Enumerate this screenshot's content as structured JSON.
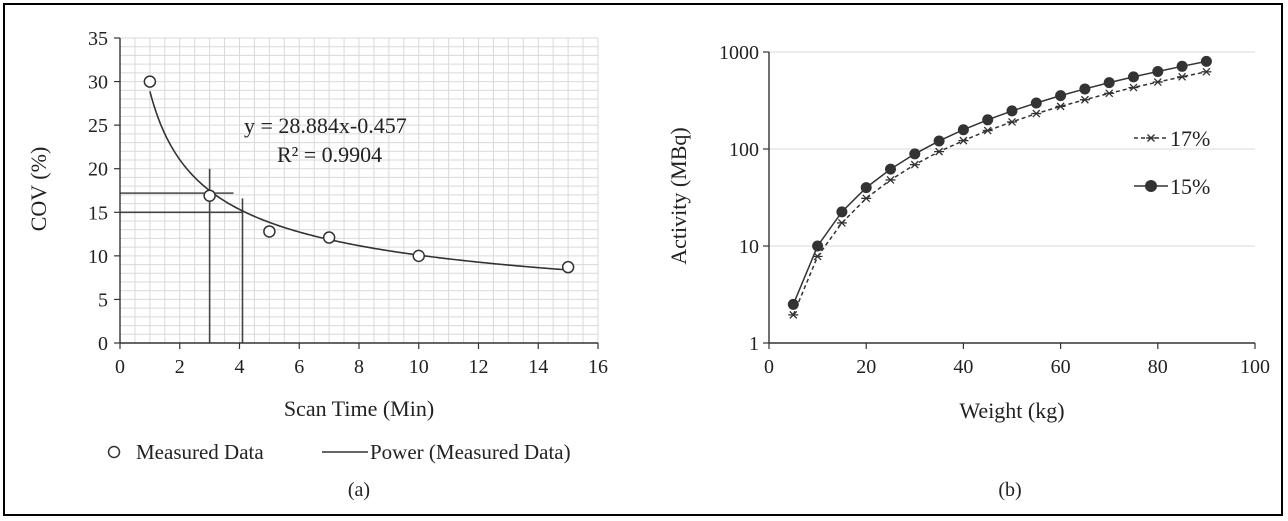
{
  "chart_data": [
    {
      "type": "scatter",
      "panel_label": "(a)",
      "xlabel": "Scan Time (Min)",
      "ylabel": "COV (%)",
      "xlim": [
        0,
        16
      ],
      "ylim": [
        0,
        35
      ],
      "xticks": [
        0,
        2,
        4,
        6,
        8,
        10,
        12,
        14,
        16
      ],
      "yticks": [
        0,
        5,
        10,
        15,
        20,
        25,
        30,
        35
      ],
      "grid": true,
      "series": [
        {
          "name": "Measured Data",
          "marker": "open-circle",
          "x": [
            1,
            3,
            5,
            7,
            10,
            15
          ],
          "y": [
            30.0,
            16.9,
            12.8,
            12.1,
            10.0,
            8.7
          ]
        },
        {
          "name": "Power (Measured Data)",
          "kind": "trendline",
          "coef": 28.884,
          "exponent": -0.457,
          "x_range": [
            1,
            15
          ]
        }
      ],
      "equation": "y = 28.884x-0.457",
      "r_squared": "R² = 0.9904",
      "reference_lines": [
        {
          "axis": "x",
          "value": 3.0,
          "from": 0,
          "to": 20
        },
        {
          "axis": "x",
          "value": 4.1,
          "from": 0,
          "to": 16.6
        },
        {
          "axis": "y",
          "value": 17.2,
          "from": 0,
          "to": 3.8
        },
        {
          "axis": "y",
          "value": 15.0,
          "from": 0,
          "to": 4.1
        }
      ],
      "legend_position": "bottom"
    },
    {
      "type": "line",
      "panel_label": "(b)",
      "xlabel": "Weight (kg)",
      "ylabel": "Activity (MBq)",
      "xlim": [
        0,
        100
      ],
      "ylim": [
        1,
        1000
      ],
      "yscale": "log",
      "xticks": [
        0,
        20,
        40,
        60,
        80,
        100
      ],
      "yticks": [
        1,
        10,
        100,
        1000
      ],
      "grid": "horizontal",
      "x": [
        5,
        10,
        15,
        20,
        25,
        30,
        35,
        40,
        45,
        50,
        55,
        60,
        65,
        70,
        75,
        80,
        85,
        90
      ],
      "series": [
        {
          "name": "17%",
          "style": "dashed",
          "marker": "asterisk",
          "values": [
            1.95,
            7.8,
            17.3,
            31,
            48,
            69,
            94,
            122,
            155,
            190,
            232,
            275,
            322,
            375,
            430,
            490,
            555,
            625
          ]
        },
        {
          "name": "15%",
          "style": "solid",
          "marker": "filled-circle",
          "values": [
            2.5,
            10,
            22.5,
            40,
            62,
            89,
            121,
            158,
            200,
            247,
            298,
            355,
            416,
            483,
            554,
            630,
            712,
            800
          ]
        }
      ],
      "legend_position": "right"
    }
  ],
  "colors": {
    "line": "#333333",
    "grid": "#d9d9d9",
    "marker_fill": "#333333"
  }
}
